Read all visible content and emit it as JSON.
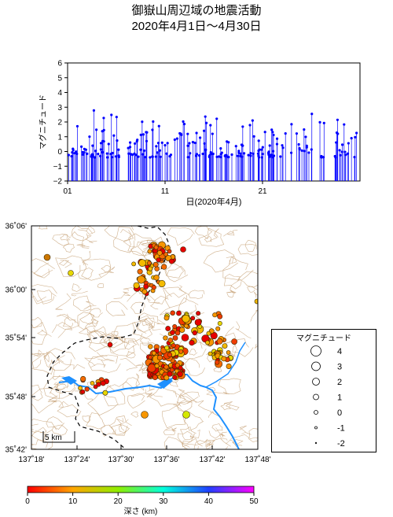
{
  "title": {
    "line1": "御嶽山周辺域の地震活動",
    "line2": "2020年4月1日～4月30日"
  },
  "magnitude_time_chart": {
    "type": "bar",
    "ylabel": "マグニチュード",
    "xlabel": "日(2020年4月)",
    "yticks": [
      "6",
      "5",
      "4",
      "3",
      "2",
      "1",
      "0",
      "−1",
      "−2"
    ],
    "xticks": [
      "01",
      "11",
      "21"
    ],
    "ylim": [
      -2,
      6
    ],
    "xlim_days": [
      1,
      31
    ],
    "color": "#0000ff"
  },
  "map": {
    "lat_labels": [
      "36˚06'",
      "36˚00'",
      "35˚54'",
      "35˚48'",
      "35˚42'"
    ],
    "lon_labels": [
      "137˚18'",
      "137˚24'",
      "137˚30'",
      "137˚36'",
      "137˚42'",
      "137˚48'"
    ],
    "scale_label": "5 km",
    "river_color": "#1e90ff",
    "contour_color": "#c8a47a",
    "border_style": "dashed"
  },
  "legend": {
    "title": "マグニチュード",
    "items": [
      {
        "label": "4"
      },
      {
        "label": "3"
      },
      {
        "label": "2"
      },
      {
        "label": "1"
      },
      {
        "label": "0"
      },
      {
        "label": "-1"
      },
      {
        "label": "-2"
      }
    ]
  },
  "depth_colorbar": {
    "ticks": [
      "0",
      "10",
      "20",
      "30",
      "40",
      "50"
    ],
    "label": "深さ (km)"
  }
}
